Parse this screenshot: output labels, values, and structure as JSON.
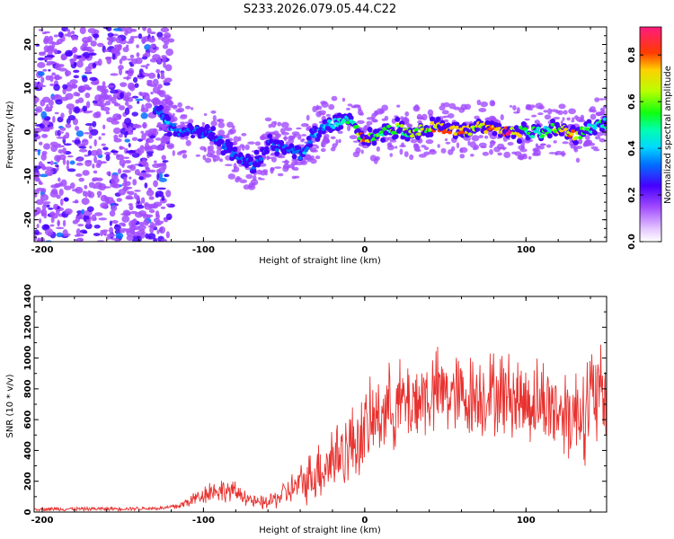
{
  "title": "S233.2026.079.05.44.C22",
  "chart_data": [
    {
      "type": "heatmap",
      "name": "spectrogram",
      "xlabel": "Height of straight line (km)",
      "ylabel": "Frequency (Hz)",
      "xlim": [
        -205,
        150
      ],
      "ylim": [
        -25,
        24
      ],
      "xticks": [
        -200,
        -100,
        0,
        100
      ],
      "yticks": [
        -20,
        -10,
        0,
        10,
        20
      ],
      "colorbar": {
        "label": "Normalized spectral amplitude",
        "range": [
          0,
          0.92
        ],
        "ticks": [
          0.0,
          0.2,
          0.4,
          0.6,
          0.8
        ]
      },
      "ridge": {
        "description_points_x": [
          -130,
          -120,
          -110,
          -100,
          -90,
          -80,
          -70,
          -60,
          -50,
          -40,
          -30,
          -20,
          -10,
          0,
          10,
          20,
          30,
          40,
          50,
          60,
          70,
          80,
          90,
          100,
          110,
          120,
          130,
          140,
          150
        ],
        "frequency_hz": [
          5,
          1,
          0,
          0,
          -2,
          -5,
          -8,
          -3,
          -4,
          -5,
          0,
          2,
          3,
          -2,
          0,
          1,
          0,
          1,
          1,
          0,
          1,
          1,
          0,
          0,
          0,
          1,
          -1,
          1,
          2
        ],
        "amplitude": [
          0.4,
          0.4,
          0.35,
          0.3,
          0.3,
          0.3,
          0.3,
          0.3,
          0.3,
          0.35,
          0.4,
          0.45,
          0.5,
          0.85,
          0.6,
          0.6,
          0.7,
          0.75,
          0.9,
          0.8,
          0.75,
          0.85,
          0.9,
          0.6,
          0.55,
          0.7,
          0.8,
          0.5,
          0.55
        ]
      }
    },
    {
      "type": "line",
      "name": "snr",
      "xlabel": "Height of straight line (km)",
      "ylabel": "SNR (10 * v/v)",
      "xlim": [
        -205,
        150
      ],
      "ylim": [
        0,
        1400
      ],
      "xticks": [
        -200,
        -100,
        0,
        100
      ],
      "yticks": [
        0,
        200,
        400,
        600,
        800,
        1000,
        1200,
        1400
      ],
      "color": "#e8322f",
      "envelope": {
        "x": [
          -205,
          -180,
          -150,
          -125,
          -115,
          -105,
          -95,
          -85,
          -75,
          -68,
          -60,
          -50,
          -40,
          -30,
          -20,
          -10,
          0,
          10,
          20,
          30,
          40,
          50,
          60,
          70,
          80,
          90,
          100,
          110,
          120,
          130,
          140,
          150
        ],
        "mean": [
          20,
          20,
          22,
          25,
          40,
          90,
          140,
          140,
          110,
          60,
          60,
          120,
          180,
          260,
          350,
          420,
          520,
          650,
          700,
          720,
          760,
          780,
          740,
          760,
          770,
          760,
          720,
          720,
          660,
          640,
          720,
          760
        ],
        "spread": [
          15,
          15,
          15,
          15,
          30,
          60,
          90,
          90,
          70,
          50,
          60,
          100,
          150,
          230,
          300,
          300,
          320,
          320,
          330,
          340,
          340,
          330,
          330,
          330,
          330,
          330,
          330,
          340,
          350,
          380,
          450,
          400
        ]
      }
    }
  ]
}
